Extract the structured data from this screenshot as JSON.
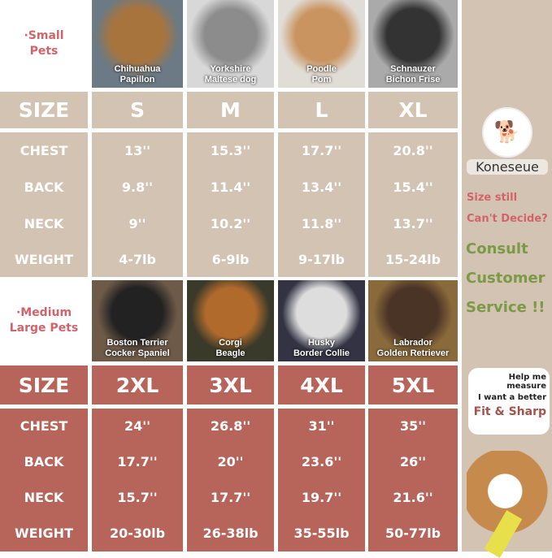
{
  "small": {
    "group_label": "·Small Pets",
    "breeds": [
      [
        "Chihuahua",
        "Papillon"
      ],
      [
        "Yorkshire",
        "Maltese dog"
      ],
      [
        "Poodle",
        "Pom"
      ],
      [
        "Schnauzer",
        "Bichon Frise"
      ]
    ],
    "header": [
      "SIZE",
      "S",
      "M",
      "L",
      "XL"
    ],
    "rows": [
      [
        "CHEST",
        "13''",
        "15.3''",
        "17.7''",
        "20.8''"
      ],
      [
        "BACK",
        "9.8''",
        "11.4''",
        "13.4''",
        "15.4''"
      ],
      [
        "NECK",
        "9''",
        "10.2''",
        "11.8''",
        "13.7''"
      ],
      [
        "WEIGHT",
        "4-7lb",
        "6-9lb",
        "9-17lb",
        "15-24lb"
      ]
    ]
  },
  "medium": {
    "group_label": "·Medium Large Pets",
    "breeds": [
      [
        "Boston Terrier",
        "Cocker Spaniel"
      ],
      [
        "Corgi",
        "Beagle"
      ],
      [
        "Husky",
        "Border Collie"
      ],
      [
        "Labrador",
        "Golden Retriever"
      ]
    ],
    "header": [
      "SIZE",
      "2XL",
      "3XL",
      "4XL",
      "5XL"
    ],
    "rows": [
      [
        "CHEST",
        "24''",
        "26.8''",
        "31''",
        "35''"
      ],
      [
        "BACK",
        "17.7''",
        "20''",
        "23.6''",
        "26''"
      ],
      [
        "NECK",
        "15.7''",
        "17.7''",
        "19.7''",
        "21.6''"
      ],
      [
        "WEIGHT",
        "20-30lb",
        "26-38lb",
        "35-55lb",
        "50-77lb"
      ]
    ]
  },
  "sidebar": {
    "brand": "Koneseue",
    "question1": "Size still",
    "question2": "Can't Decide?",
    "consult": [
      "Consult",
      "Customer",
      "Service !!"
    ],
    "bubble1": "Help me measure",
    "bubble2": "I want a better",
    "bubble3": "Fit & Sharp"
  },
  "colors": {
    "tan": "#d3c3b3",
    "red": "#b7645a",
    "pink": "#d3636b",
    "green": "#7a9a45"
  }
}
